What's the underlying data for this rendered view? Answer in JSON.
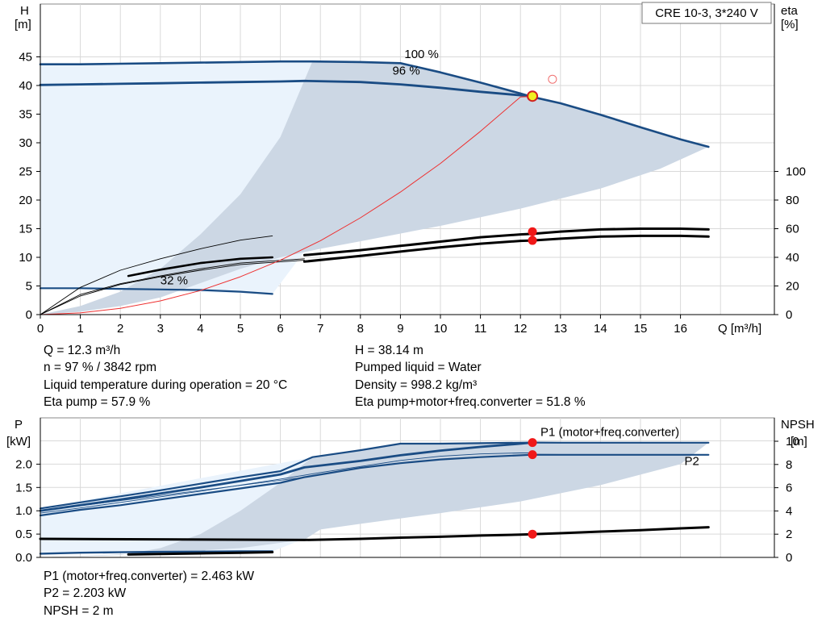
{
  "title": "CRE 10-3, 3*240 V",
  "colors": {
    "curve_blue": "#1a4c84",
    "area_light": "#eaf3fc",
    "area_dark": "#ccd7e4",
    "system_curve": "#ee3030",
    "duty_point": "#f01818",
    "duty_marker_fill": "#f0f020",
    "black": "#000000"
  },
  "chart_data": [
    {
      "type": "line",
      "name": "head-eta-chart",
      "y_label_top": "H",
      "y_unit": "[m]",
      "y2_label_top": "eta",
      "y2_unit": "[%]",
      "x_label": "Q [m³/h]",
      "xlim": [
        0,
        18
      ],
      "ylim": [
        0,
        48
      ],
      "y2lim": [
        0,
        200
      ],
      "x_ticks": [
        0,
        1,
        2,
        3,
        4,
        5,
        6,
        7,
        8,
        9,
        10,
        11,
        12,
        13,
        14,
        15,
        16
      ],
      "y_ticks": [
        0,
        5,
        10,
        15,
        20,
        25,
        30,
        35,
        40,
        45
      ],
      "y2_ticks": [
        0,
        20,
        40,
        60,
        80,
        100
      ],
      "grid": true,
      "series": [
        {
          "name": "100 %",
          "kind": "head",
          "x": [
            0,
            1,
            2,
            3,
            4,
            5,
            6,
            6.8,
            8,
            9,
            10,
            11,
            12,
            12.3,
            13,
            14,
            15,
            16,
            16.7
          ],
          "y": [
            43.7,
            43.7,
            43.8,
            43.9,
            44.0,
            44.1,
            44.2,
            44.2,
            44.1,
            43.9,
            42.3,
            40.5,
            38.6,
            38.0,
            36.9,
            34.9,
            32.7,
            30.6,
            29.3
          ]
        },
        {
          "name": "96 %",
          "kind": "head",
          "x": [
            0,
            1,
            2,
            3,
            4,
            5,
            6,
            6.6,
            8,
            9,
            10,
            11,
            12,
            12.3
          ],
          "y": [
            40.1,
            40.2,
            40.3,
            40.4,
            40.5,
            40.6,
            40.7,
            40.8,
            40.6,
            40.2,
            39.6,
            38.9,
            38.3,
            38.1
          ]
        },
        {
          "name": "32 %",
          "kind": "head",
          "x": [
            0,
            1,
            2,
            3,
            4,
            5,
            5.8
          ],
          "y": [
            4.6,
            4.6,
            4.5,
            4.4,
            4.3,
            4.0,
            3.6
          ]
        },
        {
          "name": "eta-min",
          "kind": "eta",
          "x": [
            0,
            1,
            2,
            3,
            4,
            5,
            5.8
          ],
          "y": [
            0,
            19,
            31,
            39,
            46,
            52,
            55
          ]
        },
        {
          "name": "eta-thin-lower",
          "kind": "eta",
          "x": [
            0,
            1,
            2,
            3,
            4,
            5,
            6.6
          ],
          "y": [
            0,
            13,
            21,
            26.4,
            31,
            35,
            38
          ]
        },
        {
          "name": "eta-partial",
          "kind": "eta",
          "x": [
            2.2,
            3,
            4,
            5,
            5.8
          ],
          "y": [
            27,
            31.4,
            36,
            39,
            40
          ]
        },
        {
          "name": "eta-mid",
          "kind": "eta",
          "x": [
            0,
            1,
            2,
            3,
            4,
            5,
            6.6
          ],
          "y": [
            0,
            14,
            21.6,
            27,
            32,
            36,
            39
          ]
        },
        {
          "name": "eta-max",
          "kind": "eta",
          "x": [
            6.6,
            8,
            9,
            10,
            11,
            12,
            12.3,
            13,
            14,
            15,
            16,
            16.7
          ],
          "y": [
            41.5,
            45,
            48,
            51,
            54,
            56,
            56.4,
            58,
            59.5,
            60,
            60,
            59.5
          ]
        },
        {
          "name": "eta-duty",
          "kind": "eta",
          "x": [
            6.6,
            8,
            9,
            10,
            11,
            12,
            12.3,
            13,
            14,
            15,
            16,
            16.7
          ],
          "y": [
            37,
            41,
            44,
            47,
            49.5,
            51.5,
            51.8,
            53,
            54.5,
            55,
            55,
            54.5
          ]
        },
        {
          "name": "system-curve",
          "kind": "head",
          "x": [
            0,
            1,
            2,
            3,
            4,
            5,
            6,
            7,
            8,
            9,
            10,
            11,
            12,
            12.3
          ],
          "y": [
            0,
            0.3,
            1.1,
            2.4,
            4.2,
            6.6,
            9.5,
            12.9,
            16.9,
            21.4,
            26.4,
            32.0,
            38.0,
            38.1
          ]
        }
      ],
      "points": [
        {
          "name": "duty-point",
          "x": 12.3,
          "y": 38.14,
          "axis": "head"
        },
        {
          "name": "eta-point-max",
          "x": 12.3,
          "y": 57.9,
          "axis": "eta"
        },
        {
          "name": "eta-point-duty",
          "x": 12.3,
          "y": 51.8,
          "axis": "eta"
        }
      ],
      "annotations": [
        {
          "text": "100 %",
          "x": 9.1,
          "y": 44.8
        },
        {
          "text": "96 %",
          "x": 8.8,
          "y": 41.9
        },
        {
          "text": "32 %",
          "x": 3.0,
          "y": 5.3
        }
      ]
    },
    {
      "type": "line",
      "name": "power-npsh-chart",
      "y_label_top": "P",
      "y_unit": "[kW]",
      "y2_label_top": "NPSH",
      "y2_unit": "[m]",
      "xlim": [
        0,
        18
      ],
      "ylim": [
        0,
        2.77
      ],
      "y2lim": [
        0,
        10.3
      ],
      "y_ticks": [
        0.0,
        0.5,
        1.0,
        1.5,
        2.0
      ],
      "y_tick_labels": [
        "0.0",
        "0.5",
        "1.0",
        "1.5",
        "2.0"
      ],
      "y2_ticks": [
        0,
        2,
        4,
        6,
        8,
        10
      ],
      "grid": true,
      "series": [
        {
          "name": "P1 (motor+freq.converter)",
          "kind": "power",
          "x": [
            0,
            1,
            2,
            3,
            4,
            5,
            6,
            6.8,
            8,
            9,
            10,
            11,
            12,
            12.3,
            13,
            14,
            15,
            16,
            16.7
          ],
          "y": [
            1.05,
            1.18,
            1.31,
            1.44,
            1.58,
            1.72,
            1.85,
            2.15,
            2.3,
            2.44,
            2.44,
            2.45,
            2.46,
            2.463,
            2.46,
            2.46,
            2.46,
            2.46,
            2.46
          ]
        },
        {
          "name": "P1-duty",
          "kind": "power",
          "x": [
            0,
            1,
            2,
            3,
            4,
            5,
            6,
            6.6,
            8,
            9,
            10,
            11,
            12,
            12.3
          ],
          "y": [
            1.0,
            1.12,
            1.24,
            1.37,
            1.5,
            1.64,
            1.78,
            1.93,
            2.07,
            2.19,
            2.29,
            2.37,
            2.44,
            2.463
          ]
        },
        {
          "name": "P2",
          "kind": "power",
          "x": [
            0,
            1,
            2,
            3,
            4,
            5,
            6,
            6.6,
            8,
            9,
            10,
            11,
            12,
            12.3,
            13,
            14,
            15,
            16,
            16.7
          ],
          "y": [
            0.9,
            1.02,
            1.12,
            1.24,
            1.36,
            1.48,
            1.6,
            1.72,
            1.92,
            2.02,
            2.1,
            2.15,
            2.19,
            2.203,
            2.2,
            2.2,
            2.2,
            2.2,
            2.2
          ]
        },
        {
          "name": "P2-upper",
          "kind": "power",
          "x": [
            0,
            1,
            2,
            3,
            4,
            5,
            6,
            7,
            8,
            9,
            10,
            11,
            12,
            12.3
          ],
          "y": [
            0.95,
            1.06,
            1.18,
            1.3,
            1.42,
            1.55,
            1.68,
            1.82,
            1.95,
            2.08,
            2.17,
            2.22,
            2.24,
            2.24
          ]
        },
        {
          "name": "P-low",
          "kind": "power",
          "x": [
            0,
            1,
            2,
            3,
            4,
            5,
            5.8
          ],
          "y": [
            0.08,
            0.1,
            0.11,
            0.12,
            0.125,
            0.13,
            0.13
          ]
        },
        {
          "name": "NPSH-min",
          "kind": "npsh",
          "x": [
            2.2,
            3,
            4,
            5,
            5.8
          ],
          "y": [
            0.25,
            0.3,
            0.35,
            0.4,
            0.45
          ]
        },
        {
          "name": "NPSH",
          "kind": "npsh",
          "x": [
            0,
            6.6,
            8,
            9,
            10,
            11,
            12,
            12.3,
            13,
            14,
            15,
            16,
            16.7
          ],
          "y": [
            1.6,
            1.5,
            1.6,
            1.7,
            1.78,
            1.88,
            1.96,
            2.0,
            2.08,
            2.22,
            2.35,
            2.5,
            2.6
          ]
        }
      ],
      "points": [
        {
          "name": "p1-point",
          "x": 12.3,
          "y": 2.463,
          "axis": "power"
        },
        {
          "name": "p2-point",
          "x": 12.3,
          "y": 2.203,
          "axis": "power"
        },
        {
          "name": "npsh-point",
          "x": 12.3,
          "y": 2.0,
          "axis": "npsh"
        }
      ],
      "annotations": [
        {
          "text": "P1 (motor+freq.converter)",
          "x": 12.5,
          "y": 2.6,
          "color": "#1a4c84"
        },
        {
          "text": "P2",
          "x": 16.1,
          "y": 1.98,
          "color": "#1a4c84"
        }
      ]
    }
  ],
  "info_top_left": [
    "Q = 12.3 m³/h",
    "n = 97 % / 3842 rpm",
    "Liquid temperature during operation = 20 °C",
    "Eta pump = 57.9 %"
  ],
  "info_top_right": [
    "H = 38.14 m",
    "Pumped liquid = Water",
    "Density = 998.2 kg/m³",
    "Eta pump+motor+freq.converter = 51.8 %"
  ],
  "info_bottom": [
    "P1 (motor+freq.converter) = 2.463 kW",
    "P2 = 2.203 kW",
    "NPSH = 2 m"
  ]
}
